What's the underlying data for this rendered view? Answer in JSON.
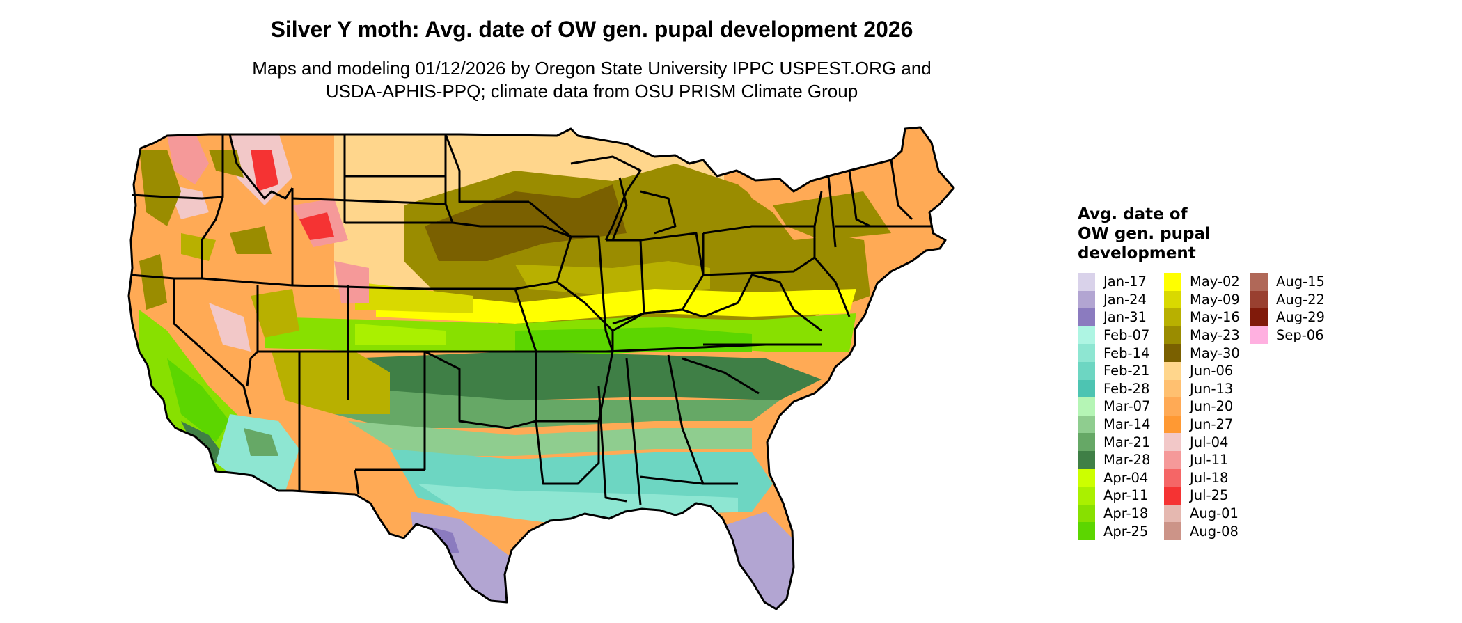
{
  "title": "Silver Y moth: Avg. date of OW gen. pupal development 2026",
  "subtitle_lines": [
    "Maps and modeling 01/12/2026 by Oregon State University IPPC USPEST.ORG and",
    "USDA-APHIS-PPQ; climate data from OSU PRISM Climate Group"
  ],
  "legend": {
    "title_lines": [
      "Avg. date of",
      "OW gen. pupal",
      "development"
    ],
    "columns": [
      [
        {
          "label": "Jan-17",
          "color": "#d9d2ea"
        },
        {
          "label": "Jan-24",
          "color": "#b2a5d2"
        },
        {
          "label": "Jan-31",
          "color": "#8b7bbf"
        },
        {
          "label": "Feb-07",
          "color": "#aef5e3"
        },
        {
          "label": "Feb-14",
          "color": "#8ee6d2"
        },
        {
          "label": "Feb-21",
          "color": "#6dd6c2"
        },
        {
          "label": "Feb-28",
          "color": "#4dc4b2"
        },
        {
          "label": "Mar-07",
          "color": "#b5f5b5"
        },
        {
          "label": "Mar-14",
          "color": "#8fcd8f"
        },
        {
          "label": "Mar-21",
          "color": "#66a866"
        },
        {
          "label": "Mar-28",
          "color": "#3f7f46"
        },
        {
          "label": "Apr-04",
          "color": "#ccff00"
        },
        {
          "label": "Apr-11",
          "color": "#aaf000"
        },
        {
          "label": "Apr-18",
          "color": "#88e000"
        },
        {
          "label": "Apr-25",
          "color": "#5cd600"
        }
      ],
      [
        {
          "label": "May-02",
          "color": "#ffff00"
        },
        {
          "label": "May-09",
          "color": "#d9d900"
        },
        {
          "label": "May-16",
          "color": "#b8b000"
        },
        {
          "label": "May-23",
          "color": "#9a8c00"
        },
        {
          "label": "May-30",
          "color": "#7a6000"
        },
        {
          "label": "Jun-06",
          "color": "#ffd68c"
        },
        {
          "label": "Jun-13",
          "color": "#ffc070"
        },
        {
          "label": "Jun-20",
          "color": "#ffaa55"
        },
        {
          "label": "Jun-27",
          "color": "#ff9933"
        },
        {
          "label": "Jul-04",
          "color": "#f2c8c8"
        },
        {
          "label": "Jul-11",
          "color": "#f59999"
        },
        {
          "label": "Jul-18",
          "color": "#f56666"
        },
        {
          "label": "Jul-25",
          "color": "#f53333"
        },
        {
          "label": "Aug-01",
          "color": "#e5b8b0"
        },
        {
          "label": "Aug-08",
          "color": "#cc9488"
        }
      ],
      [
        {
          "label": "Aug-15",
          "color": "#b06858"
        },
        {
          "label": "Aug-22",
          "color": "#994030"
        },
        {
          "label": "Aug-29",
          "color": "#801a0a"
        },
        {
          "label": "Sep-06",
          "color": "#ffb0e0"
        }
      ]
    ]
  }
}
